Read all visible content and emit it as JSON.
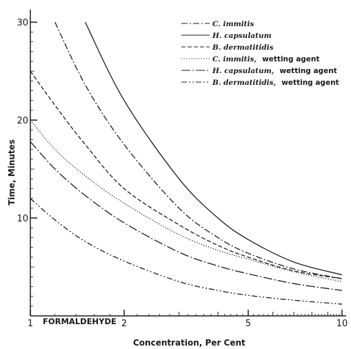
{
  "chart_data": {
    "type": "line",
    "title": "",
    "annotation": "FORMALDEHYDE",
    "xlabel": "Concentration, Per Cent",
    "ylabel": "Time, Minutes",
    "x_scale": "log",
    "xlim": [
      1,
      10
    ],
    "ylim": [
      0,
      31
    ],
    "x_ticks": [
      1,
      2,
      5,
      10
    ],
    "x_tick_labels": [
      "1",
      "2",
      "5",
      "10"
    ],
    "y_ticks": [
      10,
      20,
      30
    ],
    "y_tick_labels": [
      "10",
      "20",
      "30"
    ],
    "grid": false,
    "legend_position": "top-right",
    "x": [
      1,
      1.2,
      1.5,
      2,
      3,
      4,
      5,
      7,
      10
    ],
    "series": [
      {
        "name": "C. immitis",
        "name_suffix": "",
        "style": "dash-dot",
        "values": [
          null,
          30.0,
          23.6,
          17.5,
          11.0,
          8.0,
          6.4,
          4.8,
          3.8
        ]
      },
      {
        "name": "H. capsulatum",
        "name_suffix": "",
        "style": "solid",
        "values": [
          null,
          null,
          30.0,
          22.0,
          14.0,
          10.0,
          7.8,
          5.5,
          4.2
        ]
      },
      {
        "name": "B. dermatitidis",
        "name_suffix": "",
        "style": "dashed",
        "values": [
          25.0,
          21.5,
          17.5,
          13.0,
          9.3,
          7.2,
          6.0,
          4.6,
          3.8
        ]
      },
      {
        "name": "C. immitis,",
        "name_suffix": "wetting agent",
        "style": "dotted",
        "values": [
          20.0,
          17.0,
          14.3,
          11.5,
          8.3,
          6.7,
          5.8,
          4.5,
          3.5
        ]
      },
      {
        "name": "H. capsulatum,",
        "name_suffix": "wetting agent",
        "style": "long-dash-dot",
        "values": [
          17.8,
          15.0,
          12.3,
          9.5,
          6.5,
          5.1,
          4.3,
          3.3,
          2.6
        ]
      },
      {
        "name": "B. dermatitidis,",
        "name_suffix": "wetting agent",
        "style": "dash-dot-dot",
        "values": [
          12.0,
          9.8,
          7.6,
          5.6,
          3.5,
          2.6,
          2.1,
          1.6,
          1.2
        ]
      }
    ]
  }
}
